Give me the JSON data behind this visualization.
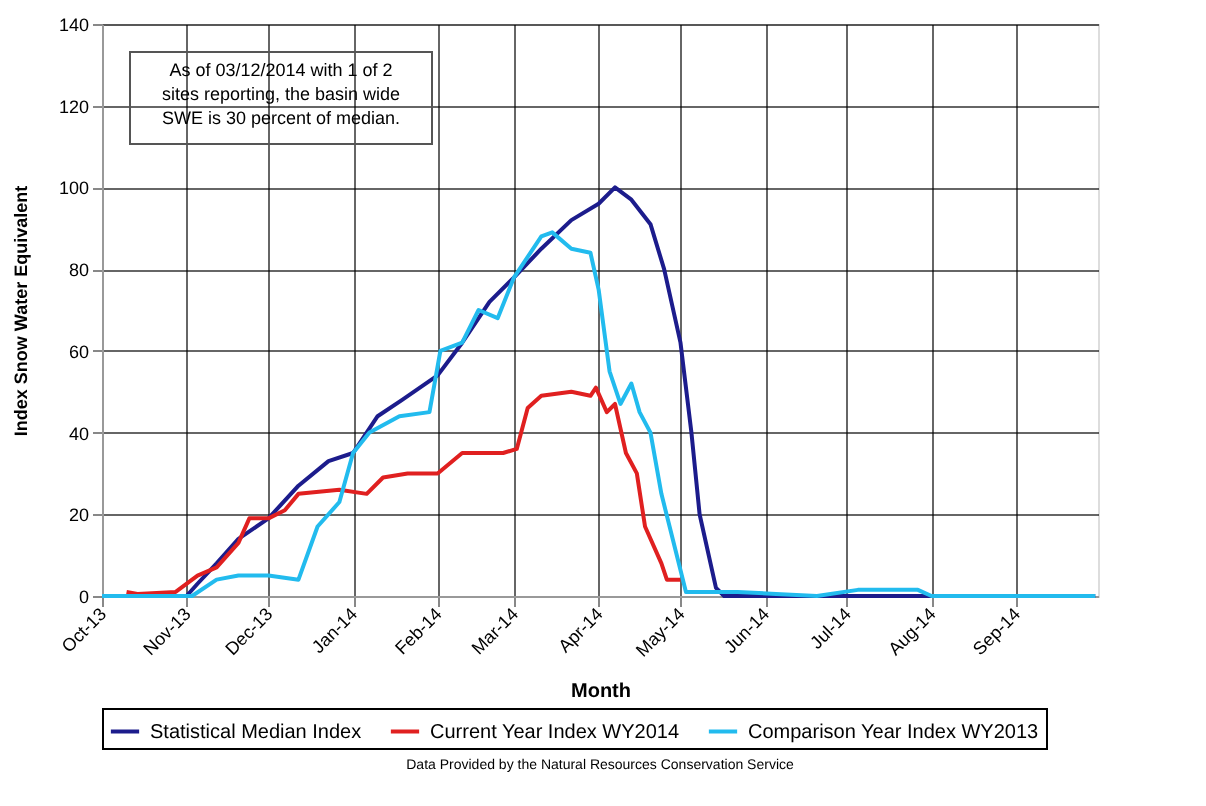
{
  "chart_data": {
    "type": "line",
    "xlabel": "Month",
    "ylabel": "Index Snow Water Equivalent",
    "annotations": [
      "As of 03/12/2014 with 1 of 2 sites reporting, the basin wide SWE is 30 percent of median.",
      "Data Provided by the Natural Resources Conservation Service"
    ],
    "xlim": [
      "2013-10-01",
      "2014-10-01"
    ],
    "xticks": [
      {
        "value": "2013-10-01",
        "label": "Oct-13"
      },
      {
        "value": "2013-11-01",
        "label": "Nov-13"
      },
      {
        "value": "2013-12-01",
        "label": "Dec-13"
      },
      {
        "value": "2014-01-01",
        "label": "Jan-14"
      },
      {
        "value": "2014-02-01",
        "label": "Feb-14"
      },
      {
        "value": "2014-03-01",
        "label": "Mar-14"
      },
      {
        "value": "2014-04-01",
        "label": "Apr-14"
      },
      {
        "value": "2014-05-01",
        "label": "May-14"
      },
      {
        "value": "2014-06-01",
        "label": "Jun-14"
      },
      {
        "value": "2014-07-01",
        "label": "Jul-14"
      },
      {
        "value": "2014-08-01",
        "label": "Aug-14"
      },
      {
        "value": "2014-09-01",
        "label": "Sep-14"
      }
    ],
    "ylim": [
      0,
      140
    ],
    "yticks": [
      0,
      20,
      40,
      60,
      80,
      100,
      120,
      140
    ],
    "grid": true,
    "legend": "bottom",
    "series": [
      {
        "name": "Statistical Median Index",
        "color": "#1c1c8c",
        "x": [
          "2013-10-01",
          "2013-11-01",
          "2013-11-05",
          "2013-11-12",
          "2013-11-20",
          "2013-12-01",
          "2013-12-12",
          "2013-12-23",
          "2014-01-01",
          "2014-01-10",
          "2014-01-19",
          "2014-02-01",
          "2014-02-10",
          "2014-02-20",
          "2014-03-01",
          "2014-03-11",
          "2014-03-22",
          "2014-04-01",
          "2014-04-07",
          "2014-04-13",
          "2014-04-20",
          "2014-04-25",
          "2014-05-01",
          "2014-05-05",
          "2014-05-08",
          "2014-05-14",
          "2014-05-17",
          "2014-09-30"
        ],
        "values": [
          0,
          0,
          3,
          8,
          14,
          19,
          27,
          33,
          35,
          44,
          48,
          54,
          62,
          72,
          78,
          85,
          92,
          96,
          100,
          97,
          91,
          80,
          62,
          40,
          20,
          2,
          0,
          0
        ]
      },
      {
        "name": "Current Year Index WY2014",
        "color": "#e02020",
        "x": [
          "2013-10-10",
          "2013-10-14",
          "2013-10-28",
          "2013-11-05",
          "2013-11-12",
          "2013-11-20",
          "2013-11-24",
          "2013-12-01",
          "2013-12-07",
          "2013-12-12",
          "2013-12-27",
          "2014-01-06",
          "2014-01-12",
          "2014-01-21",
          "2014-02-01",
          "2014-02-10",
          "2014-02-25",
          "2014-03-02",
          "2014-03-06",
          "2014-03-11",
          "2014-03-22",
          "2014-03-29",
          "2014-03-31",
          "2014-04-04",
          "2014-04-07",
          "2014-04-11",
          "2014-04-15",
          "2014-04-18",
          "2014-04-24",
          "2014-04-26",
          "2014-05-01"
        ],
        "values": [
          1,
          0.5,
          1,
          5,
          7,
          13,
          19,
          19,
          21,
          25,
          26,
          25,
          29,
          30,
          30,
          35,
          35,
          36,
          46,
          49,
          50,
          49,
          51,
          45,
          47,
          35,
          30,
          17,
          8,
          4,
          4
        ]
      },
      {
        "name": "Comparison Year Index WY2013",
        "color": "#22bbee",
        "x": [
          "2013-10-01",
          "2013-11-03",
          "2013-11-12",
          "2013-11-20",
          "2013-12-01",
          "2013-12-12",
          "2013-12-19",
          "2013-12-27",
          "2014-01-01",
          "2014-01-07",
          "2014-01-18",
          "2014-01-29",
          "2014-02-02",
          "2014-02-10",
          "2014-02-16",
          "2014-02-23",
          "2014-03-01",
          "2014-03-11",
          "2014-03-15",
          "2014-03-22",
          "2014-03-29",
          "2014-04-01",
          "2014-04-05",
          "2014-04-09",
          "2014-04-13",
          "2014-04-16",
          "2014-04-20",
          "2014-04-24",
          "2014-04-27",
          "2014-05-03",
          "2014-05-22",
          "2014-06-05",
          "2014-06-20",
          "2014-07-05",
          "2014-07-27",
          "2014-08-01",
          "2014-09-30"
        ],
        "values": [
          0,
          0,
          4,
          5,
          5,
          4,
          17,
          23,
          35,
          40,
          44,
          45,
          60,
          62,
          70,
          68,
          78,
          88,
          89,
          85,
          84,
          75,
          55,
          47,
          52,
          45,
          40,
          25,
          17,
          1,
          1,
          0.5,
          0,
          1.5,
          1.5,
          0,
          0
        ]
      }
    ]
  }
}
